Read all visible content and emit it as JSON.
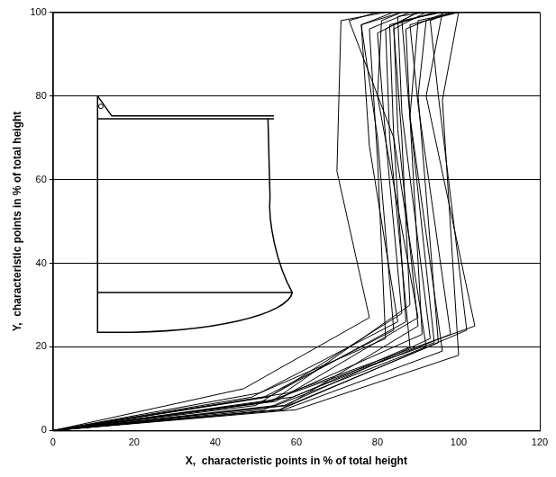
{
  "chart_data": {
    "type": "line",
    "x_label": "X,  characteristic points in % of total height",
    "y_label": "Y,  characteristic points in % of total height",
    "xlim": [
      0,
      120
    ],
    "xticks": [
      0,
      20,
      40,
      60,
      80,
      100,
      120
    ],
    "ylim": [
      0,
      100
    ],
    "yticks": [
      0,
      20,
      40,
      60,
      80,
      100
    ],
    "grid": "y",
    "color": "#000000",
    "line_style": "solid",
    "marker": "none",
    "series": [
      {
        "x": [
          0,
          47,
          78,
          70,
          71,
          82
        ],
        "values": [
          0,
          10,
          27,
          62,
          98,
          100
        ]
      },
      {
        "x": [
          0,
          52,
          84,
          80,
          76,
          86
        ],
        "values": [
          0,
          8,
          24,
          70,
          97,
          100
        ]
      },
      {
        "x": [
          0,
          55,
          92,
          84,
          83,
          95
        ],
        "values": [
          0,
          6,
          20,
          70,
          97,
          100
        ]
      },
      {
        "x": [
          0,
          57,
          96,
          88,
          90,
          100
        ],
        "values": [
          0,
          5,
          19,
          75,
          98,
          100
        ]
      },
      {
        "x": [
          0,
          60,
          100,
          96,
          100
        ],
        "values": [
          0,
          5,
          18,
          79,
          100
        ]
      },
      {
        "x": [
          0,
          58,
          104,
          92,
          96
        ],
        "values": [
          0,
          9,
          25,
          80,
          100
        ]
      },
      {
        "x": [
          0,
          54,
          88,
          86,
          84,
          92
        ],
        "values": [
          0,
          7,
          30,
          70,
          96,
          100
        ]
      },
      {
        "x": [
          0,
          50,
          86,
          82,
          80,
          90
        ],
        "values": [
          0,
          6,
          28,
          70,
          95,
          100
        ]
      },
      {
        "x": [
          0,
          56,
          90,
          85,
          84,
          94
        ],
        "values": [
          0,
          5,
          25,
          72,
          97,
          100
        ]
      },
      {
        "x": [
          0,
          53,
          94,
          88,
          86,
          96
        ],
        "values": [
          0,
          7,
          21,
          75,
          98,
          100
        ]
      },
      {
        "x": [
          0,
          59,
          98,
          90,
          88,
          100
        ],
        "values": [
          0,
          8,
          23,
          78,
          97,
          100
        ]
      },
      {
        "x": [
          0,
          51,
          82,
          80,
          78,
          88
        ],
        "values": [
          0,
          9,
          22,
          65,
          96,
          100
        ]
      },
      {
        "x": [
          0,
          55,
          90,
          80,
          81,
          86
        ],
        "values": [
          0,
          7,
          27,
          80,
          98,
          100
        ]
      },
      {
        "x": [
          0,
          57,
          93,
          86,
          85,
          92
        ],
        "values": [
          0,
          6,
          22,
          76,
          99,
          100
        ]
      },
      {
        "x": [
          0,
          49,
          85,
          78,
          76,
          84
        ],
        "values": [
          0,
          8,
          26,
          68,
          97,
          100
        ]
      },
      {
        "x": [
          0,
          56,
          102,
          95,
          93,
          98
        ],
        "values": [
          0,
          5,
          24,
          80,
          98,
          100
        ]
      },
      {
        "x": [
          0,
          52,
          88,
          83,
          82,
          90
        ],
        "values": [
          0,
          5,
          20,
          70,
          96,
          100
        ]
      },
      {
        "x": [
          0,
          54,
          91,
          88,
          87,
          97
        ],
        "values": [
          0,
          7,
          23,
          75,
          96,
          100
        ]
      },
      {
        "x": [
          0,
          58,
          95,
          90,
          92,
          99
        ],
        "values": [
          0,
          6,
          21,
          80,
          98,
          100
        ]
      },
      {
        "x": [
          0,
          53,
          87,
          84,
          73,
          80
        ],
        "values": [
          0,
          8,
          26,
          70,
          98,
          100
        ]
      }
    ]
  }
}
